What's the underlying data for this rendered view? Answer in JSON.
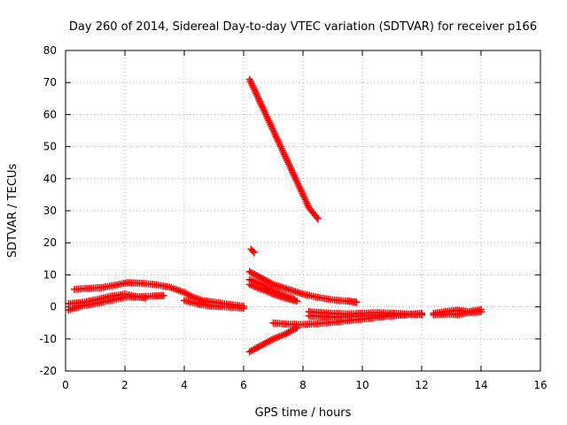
{
  "chart_data": {
    "type": "scatter",
    "title": "Day 260 of 2014, Sidereal Day-to-day VTEC variation (SDTVAR) for receiver p166",
    "xlabel": "GPS time / hours",
    "ylabel": "SDTVAR / TECUs",
    "xlim": [
      0,
      16
    ],
    "ylim": [
      -20,
      80
    ],
    "xticks": [
      "0",
      "2",
      "4",
      "6",
      "8",
      "10",
      "12",
      "14",
      "16"
    ],
    "yticks": [
      "-20",
      "-10",
      "0",
      "10",
      "20",
      "30",
      "40",
      "50",
      "60",
      "70",
      "80"
    ],
    "grid": true,
    "marker_color": "#ff0000",
    "series": [
      {
        "segments": [
          {
            "x": [
              0.1,
              0.5,
              1.0,
              1.5,
              2.0,
              2.5,
              3.0,
              3.3
            ],
            "y": [
              -1.0,
              0.2,
              1.0,
              2.0,
              3.0,
              3.2,
              3.4,
              3.5
            ]
          },
          {
            "x": [
              0.1,
              0.5,
              1.0,
              1.5,
              2.0,
              2.5,
              2.7
            ],
            "y": [
              1.0,
              1.3,
              2.2,
              3.3,
              4.0,
              3.0,
              2.8
            ]
          },
          {
            "x": [
              0.3,
              0.8,
              1.2,
              1.7,
              2.1,
              2.5,
              3.0,
              3.5,
              4.0,
              4.3,
              4.6,
              5.0,
              5.5,
              6.0
            ],
            "y": [
              5.5,
              5.8,
              6.0,
              6.8,
              7.6,
              7.4,
              7.0,
              6.2,
              4.5,
              3.0,
              2.0,
              1.5,
              0.8,
              0.2
            ]
          },
          {
            "x": [
              4.0,
              4.5,
              5.0,
              5.5,
              6.0
            ],
            "y": [
              2.0,
              0.8,
              0.2,
              0.0,
              -0.4
            ]
          },
          {
            "x": [
              6.2,
              6.6,
              7.0,
              7.4,
              7.8,
              8.2,
              8.5
            ],
            "y": [
              71.0,
              63.0,
              55.0,
              47.0,
              39.0,
              31.0,
              27.5
            ]
          },
          {
            "x": [
              6.25,
              6.35
            ],
            "y": [
              18.0,
              17.0
            ]
          },
          {
            "x": [
              6.2,
              6.6,
              7.0,
              7.5,
              8.0,
              8.5,
              9.0,
              9.5,
              9.8
            ],
            "y": [
              11.0,
              9.0,
              7.0,
              5.5,
              4.0,
              3.0,
              2.2,
              1.8,
              1.5
            ]
          },
          {
            "x": [
              6.2,
              6.6,
              7.0,
              7.4,
              7.7
            ],
            "y": [
              8.5,
              7.0,
              5.0,
              3.5,
              2.5
            ]
          },
          {
            "x": [
              6.2,
              6.6,
              7.0,
              7.5,
              7.8
            ],
            "y": [
              7.0,
              5.5,
              4.0,
              2.5,
              1.8
            ]
          },
          {
            "x": [
              6.2,
              6.6,
              7.0,
              7.4,
              7.8
            ],
            "y": [
              -14.0,
              -12.0,
              -10.0,
              -8.5,
              -6.5
            ]
          },
          {
            "x": [
              7.0,
              7.5,
              8.0,
              8.5,
              9.0,
              9.5,
              10.0,
              10.5,
              11.0,
              11.5,
              12.0
            ],
            "y": [
              -5.0,
              -5.4,
              -5.5,
              -5.2,
              -4.8,
              -4.3,
              -3.8,
              -3.3,
              -2.8,
              -2.4,
              -2.0
            ]
          },
          {
            "x": [
              8.2,
              8.6,
              9.0,
              9.5,
              10.0,
              10.5,
              11.0,
              11.5,
              12.0
            ],
            "y": [
              -1.5,
              -1.8,
              -2.0,
              -2.2,
              -2.0,
              -1.8,
              -2.0,
              -2.2,
              -2.5
            ]
          },
          {
            "x": [
              8.2,
              8.6,
              9.0,
              9.5,
              10.0,
              10.5,
              11.0,
              11.5,
              12.0
            ],
            "y": [
              -2.8,
              -3.0,
              -3.2,
              -3.0,
              -2.8,
              -2.6,
              -2.4,
              -2.3,
              -2.2
            ]
          },
          {
            "x": [
              12.4,
              12.8,
              13.2,
              13.6,
              14.0
            ],
            "y": [
              -2.0,
              -1.5,
              -1.0,
              -1.5,
              -0.8
            ]
          },
          {
            "x": [
              12.4,
              12.8,
              13.2,
              13.6,
              14.0
            ],
            "y": [
              -2.5,
              -2.2,
              -2.4,
              -1.8,
              -1.5
            ]
          }
        ]
      }
    ]
  }
}
